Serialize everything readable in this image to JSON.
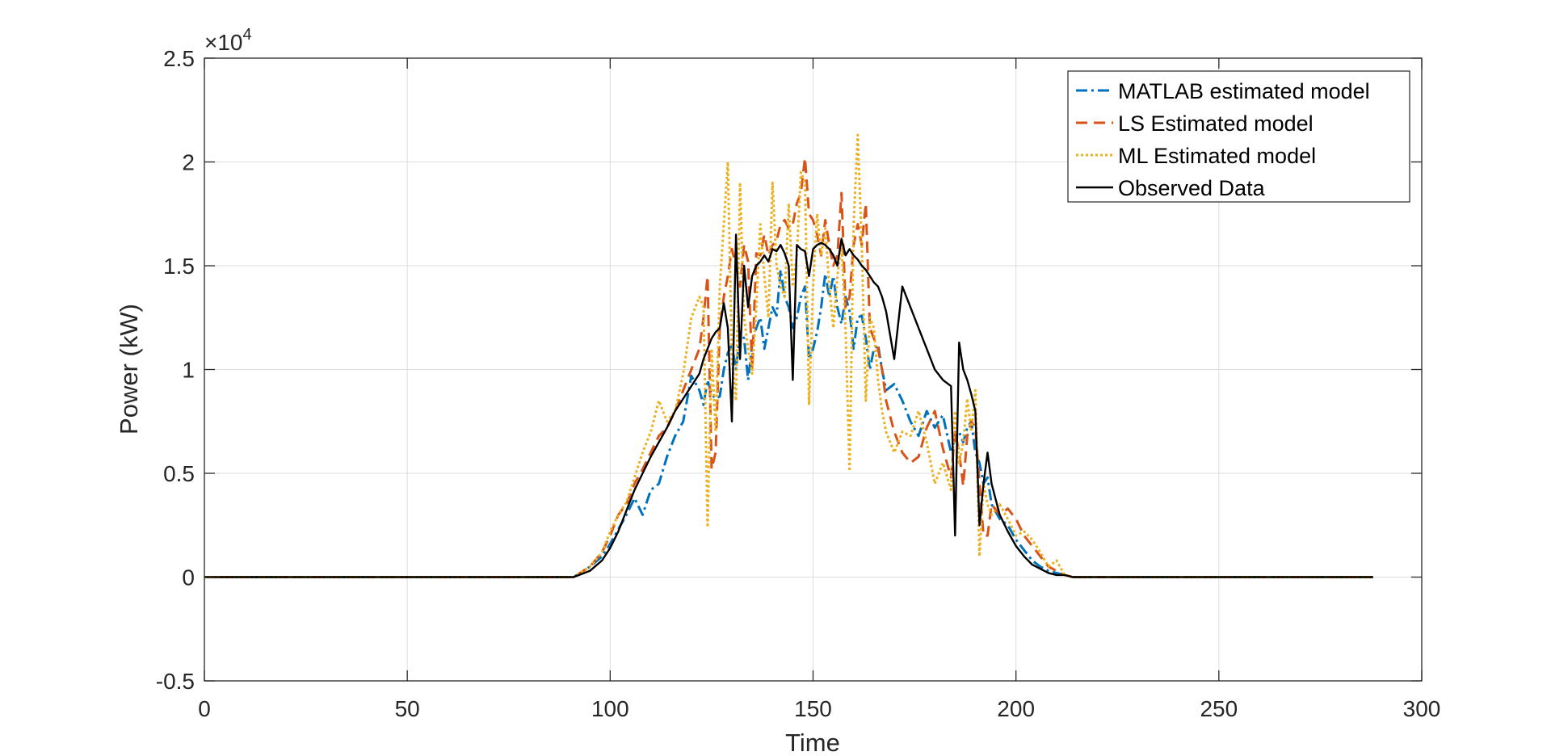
{
  "chart_data": {
    "type": "line",
    "xlabel": "Time",
    "ylabel": "Power (kW)",
    "y_exponent_label": {
      "prefix": "×10",
      "power": "4"
    },
    "xlim": [
      0,
      300
    ],
    "ylim": [
      -0.5,
      2.5
    ],
    "y_scale_factor": 10000,
    "x_ticks": [
      0,
      50,
      100,
      150,
      200,
      250,
      300
    ],
    "x_tick_labels": [
      "0",
      "50",
      "100",
      "150",
      "200",
      "250",
      "300"
    ],
    "y_ticks": [
      -0.5,
      0,
      0.5,
      1,
      1.5,
      2,
      2.5
    ],
    "y_tick_labels": [
      "-0.5",
      "0",
      "0.5",
      "1",
      "1.5",
      "2",
      "2.5"
    ],
    "grid": true,
    "legend_position": "top-right",
    "x": [
      0,
      91,
      95,
      98,
      100,
      102,
      104,
      106,
      108,
      110,
      112,
      114,
      116,
      118,
      120,
      122,
      123,
      124,
      125,
      126,
      127,
      128,
      129,
      130,
      131,
      132,
      133,
      134,
      135,
      136,
      137,
      138,
      139,
      140,
      141,
      142,
      143,
      144,
      145,
      146,
      147,
      148,
      149,
      150,
      151,
      152,
      153,
      154,
      155,
      156,
      157,
      158,
      159,
      160,
      161,
      162,
      163,
      164,
      165,
      166,
      167,
      168,
      170,
      172,
      174,
      176,
      178,
      180,
      182,
      184,
      185,
      186,
      187,
      188,
      189,
      190,
      191,
      192,
      193,
      194,
      196,
      198,
      200,
      202,
      204,
      206,
      208,
      210,
      212,
      214,
      288
    ],
    "series": [
      {
        "name": "MATLAB estimated model",
        "color": "#0072BD",
        "dash": "dashdot",
        "values": [
          0,
          0,
          0.05,
          0.1,
          0.16,
          0.23,
          0.3,
          0.38,
          0.3,
          0.42,
          0.45,
          0.58,
          0.68,
          0.75,
          0.97,
          0.9,
          0.83,
          0.95,
          0.88,
          0.86,
          0.87,
          1.0,
          1.08,
          1.12,
          1.0,
          1.18,
          1.15,
          0.95,
          1.12,
          1.2,
          1.25,
          1.1,
          1.2,
          1.3,
          1.26,
          1.48,
          1.35,
          1.3,
          1.2,
          1.25,
          1.35,
          1.4,
          1.05,
          1.1,
          1.18,
          1.3,
          1.46,
          1.35,
          1.45,
          1.3,
          1.22,
          1.35,
          1.28,
          1.1,
          1.25,
          1.26,
          1.15,
          1.0,
          1.1,
          1.12,
          1.0,
          0.9,
          0.93,
          0.85,
          0.75,
          0.68,
          0.8,
          0.72,
          0.78,
          0.6,
          0.67,
          0.7,
          0.65,
          0.72,
          0.75,
          0.6,
          0.55,
          0.45,
          0.48,
          0.35,
          0.28,
          0.25,
          0.18,
          0.13,
          0.08,
          0.05,
          0.03,
          0.02,
          0.01,
          0,
          0
        ]
      },
      {
        "name": "LS Estimated model",
        "color": "#D95319",
        "dash": "dashed",
        "values": [
          0,
          0,
          0.05,
          0.12,
          0.2,
          0.3,
          0.35,
          0.45,
          0.52,
          0.6,
          0.68,
          0.72,
          0.8,
          0.9,
          1.0,
          1.1,
          1.25,
          1.45,
          0.52,
          0.6,
          1.2,
          1.35,
          1.45,
          1.58,
          1.5,
          1.4,
          1.6,
          1.52,
          1.0,
          1.56,
          1.55,
          1.65,
          1.55,
          1.6,
          1.62,
          1.7,
          1.72,
          1.68,
          1.7,
          1.8,
          1.85,
          2.02,
          1.75,
          1.72,
          1.65,
          1.55,
          1.72,
          1.6,
          1.5,
          1.55,
          1.85,
          1.3,
          1.35,
          1.6,
          1.7,
          1.6,
          1.8,
          1.2,
          1.15,
          1.1,
          1.0,
          0.85,
          0.7,
          0.6,
          0.55,
          0.58,
          0.72,
          0.8,
          0.62,
          0.48,
          0.7,
          0.6,
          0.44,
          0.68,
          0.75,
          0.72,
          0.45,
          0.2,
          0.2,
          0.35,
          0.3,
          0.33,
          0.28,
          0.2,
          0.15,
          0.1,
          0.05,
          0.03,
          0.01,
          0,
          0
        ]
      },
      {
        "name": "ML Estimated model",
        "color": "#EDB120",
        "dash": "dotted",
        "values": [
          0,
          0,
          0.05,
          0.12,
          0.22,
          0.3,
          0.36,
          0.48,
          0.6,
          0.7,
          0.85,
          0.75,
          0.8,
          0.98,
          1.25,
          1.35,
          1.3,
          0.24,
          1.1,
          0.7,
          1.4,
          1.7,
          2.0,
          1.05,
          0.85,
          1.9,
          1.25,
          1.1,
          0.98,
          1.3,
          1.7,
          1.45,
          1.25,
          1.9,
          1.5,
          1.4,
          1.35,
          1.8,
          1.4,
          1.55,
          1.95,
          1.9,
          0.83,
          1.4,
          1.75,
          1.55,
          1.68,
          1.4,
          1.2,
          1.45,
          1.6,
          1.2,
          0.51,
          1.7,
          2.13,
          1.6,
          0.85,
          1.25,
          1.2,
          0.95,
          0.8,
          0.7,
          0.6,
          0.7,
          0.68,
          0.8,
          0.65,
          0.45,
          0.55,
          0.42,
          0.8,
          0.55,
          0.65,
          0.86,
          0.7,
          0.9,
          0.1,
          0.45,
          0.35,
          0.3,
          0.35,
          0.28,
          0.2,
          0.22,
          0.18,
          0.12,
          0.05,
          0.08,
          0.01,
          0,
          0
        ]
      },
      {
        "name": "Observed Data",
        "color": "#000000",
        "dash": "solid",
        "values": [
          0,
          0,
          0.03,
          0.08,
          0.14,
          0.22,
          0.32,
          0.42,
          0.5,
          0.58,
          0.65,
          0.72,
          0.8,
          0.86,
          0.92,
          0.98,
          1.05,
          1.1,
          1.15,
          1.18,
          1.2,
          1.32,
          1.2,
          0.75,
          1.65,
          1.05,
          1.5,
          1.3,
          1.45,
          1.5,
          1.52,
          1.55,
          1.52,
          1.58,
          1.57,
          1.6,
          1.56,
          1.5,
          0.95,
          1.6,
          1.58,
          1.57,
          1.45,
          1.58,
          1.6,
          1.61,
          1.6,
          1.58,
          1.55,
          1.5,
          1.63,
          1.55,
          1.58,
          1.55,
          1.53,
          1.5,
          1.48,
          1.45,
          1.42,
          1.4,
          1.35,
          1.28,
          1.05,
          1.4,
          1.3,
          1.2,
          1.1,
          1.0,
          0.95,
          0.92,
          0.2,
          1.13,
          1.0,
          0.95,
          0.88,
          0.8,
          0.25,
          0.45,
          0.6,
          0.45,
          0.3,
          0.22,
          0.15,
          0.1,
          0.06,
          0.04,
          0.02,
          0.01,
          0.01,
          0,
          0
        ]
      }
    ]
  }
}
